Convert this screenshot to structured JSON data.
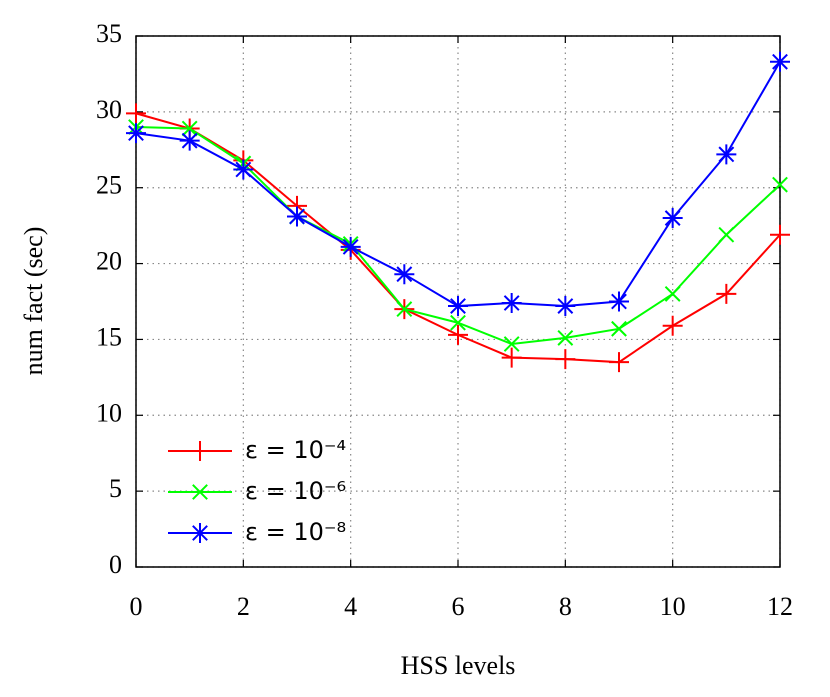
{
  "chart_data": {
    "type": "line",
    "x_label": "HSS levels",
    "y_label": "num fact (sec)",
    "x": [
      0,
      1,
      2,
      3,
      4,
      5,
      6,
      7,
      8,
      9,
      10,
      11,
      12
    ],
    "xlim": [
      0,
      12
    ],
    "xticks": [
      0,
      2,
      4,
      6,
      8,
      10,
      12
    ],
    "ylim": [
      0,
      35
    ],
    "yticks": [
      0,
      5,
      10,
      15,
      20,
      25,
      30,
      35
    ],
    "grid": true,
    "legend": "lower left",
    "series": [
      {
        "name": "ε = 10⁻⁴",
        "color": "#ff0000",
        "marker": "plus",
        "values": [
          29.9,
          28.9,
          26.8,
          23.8,
          20.9,
          17.0,
          15.3,
          13.8,
          13.7,
          13.5,
          15.9,
          18.0,
          21.9
        ]
      },
      {
        "name": "ε = 10⁻⁶",
        "color": "#00ff00",
        "marker": "x",
        "values": [
          29.0,
          28.9,
          26.6,
          23.1,
          21.3,
          17.0,
          16.1,
          14.7,
          15.1,
          15.7,
          18.0,
          21.9,
          25.2
        ]
      },
      {
        "name": "ε = 10⁻⁸",
        "color": "#0000ff",
        "marker": "star",
        "values": [
          28.6,
          28.1,
          26.2,
          23.1,
          21.1,
          19.3,
          17.2,
          17.4,
          17.2,
          17.5,
          23.0,
          27.2,
          33.3
        ]
      }
    ]
  }
}
